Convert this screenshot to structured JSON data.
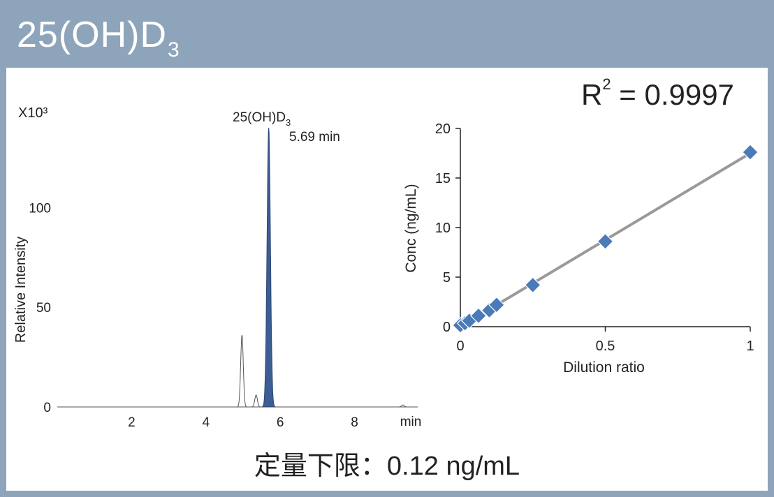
{
  "title": {
    "main": "25(OH)D",
    "subscript": "3"
  },
  "caption": "定量下限：0.12 ng/mL",
  "colors": {
    "header": "#8ea4ba",
    "peak_fill": "#3d5e94",
    "marker": "#4a7ab8",
    "fit_line": "#9a9a9a"
  },
  "chart_data": [
    {
      "type": "line",
      "title": "",
      "xlabel": "min",
      "ylabel": "Relative Intensity",
      "y_multiplier": "X10³",
      "x_ticks": [
        2,
        4,
        6,
        8
      ],
      "y_ticks": [
        0,
        50,
        100
      ],
      "xlim": [
        0,
        9.7
      ],
      "ylim": [
        0,
        140
      ],
      "peak_annotation": {
        "compound": "25(OH)D",
        "compound_sub": "3",
        "retention_label": "5.69 min"
      },
      "peaks": [
        {
          "rt": 4.97,
          "height": 36,
          "filled": false
        },
        {
          "rt": 5.35,
          "height": 6,
          "filled": false
        },
        {
          "rt": 5.69,
          "height": 140,
          "filled": true
        },
        {
          "rt": 9.3,
          "height": 1,
          "filled": false
        }
      ]
    },
    {
      "type": "scatter",
      "title": "",
      "xlabel": "Dilution ratio",
      "ylabel": "Conc (ng/mL)",
      "r2_label": "R",
      "r2_sup": "2",
      "r2_value": " = 0.9997",
      "x_ticks": [
        0,
        0.5,
        1
      ],
      "y_ticks": [
        0,
        5,
        10,
        15,
        20
      ],
      "xlim": [
        0,
        1
      ],
      "ylim": [
        0,
        20
      ],
      "fit": {
        "slope": 17.5,
        "intercept": 0
      },
      "points": [
        {
          "x": 0,
          "y": 0.15
        },
        {
          "x": 0.016,
          "y": 0.35
        },
        {
          "x": 0.031,
          "y": 0.6
        },
        {
          "x": 0.0625,
          "y": 1.1
        },
        {
          "x": 0.1,
          "y": 1.65
        },
        {
          "x": 0.125,
          "y": 2.2
        },
        {
          "x": 0.25,
          "y": 4.2
        },
        {
          "x": 0.5,
          "y": 8.6
        },
        {
          "x": 1,
          "y": 17.6
        }
      ]
    }
  ]
}
